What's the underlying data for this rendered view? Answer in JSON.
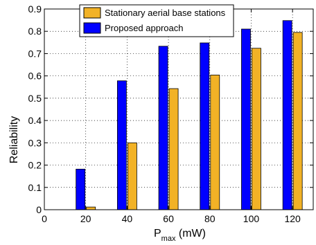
{
  "chart_data": {
    "type": "bar",
    "xlabel_main": "P",
    "xlabel_sub": "max",
    "xlabel_unit": " (mW)",
    "ylabel": "Reliability",
    "x_ticks": [
      0,
      20,
      40,
      60,
      80,
      100,
      120
    ],
    "y_ticks": [
      "0",
      "0.1",
      "0.2",
      "0.3",
      "0.4",
      "0.5",
      "0.6",
      "0.7",
      "0.8",
      "0.9"
    ],
    "xlim": [
      0,
      130
    ],
    "ylim": [
      0,
      0.9
    ],
    "grid": true,
    "legend_position": "top-right",
    "categories": [
      20,
      40,
      60,
      80,
      100,
      120
    ],
    "series": [
      {
        "name": "Stationary aerial base stations",
        "color": "#f2b226",
        "values": [
          0.012,
          0.3,
          0.543,
          0.604,
          0.724,
          0.795
        ]
      },
      {
        "name": "Proposed approach",
        "color": "#0000ff",
        "values": [
          0.182,
          0.578,
          0.733,
          0.748,
          0.81,
          0.848
        ]
      }
    ]
  }
}
